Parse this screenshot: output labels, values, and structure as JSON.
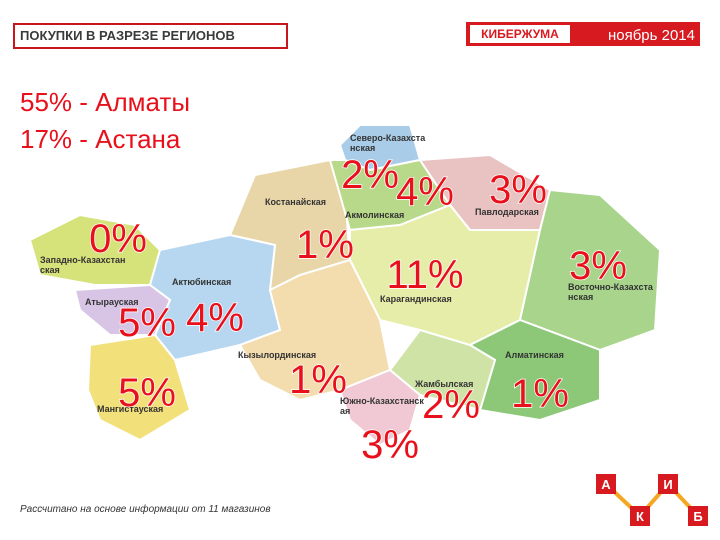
{
  "header": {
    "title": "ПОКУПКИ В РАЗРЕЗЕ РЕГИОНОВ",
    "brand": "КИБЕРЖУМА",
    "date": "ноябрь 2014"
  },
  "summary": [
    "55% - Алматы",
    "17% - Астана"
  ],
  "regions": [
    {
      "name": "Северо-Казахстанская"
    },
    {
      "name": "Костанайская"
    },
    {
      "name": "Акмолинская"
    },
    {
      "name": "Павлодарская"
    },
    {
      "name": "Западно-Казахстанская"
    },
    {
      "name": "Актюбинская"
    },
    {
      "name": "Карагандинская"
    },
    {
      "name": "Восточно-Казахстанская"
    },
    {
      "name": "Атырауская"
    },
    {
      "name": "Кызылординская"
    },
    {
      "name": "Мангистауская"
    },
    {
      "name": "Алматинская"
    },
    {
      "name": "Жамбылская"
    },
    {
      "name": "Южно-Казахстанская"
    }
  ],
  "percents": [
    "2%",
    "4%",
    "3%",
    "0%",
    "1%",
    "11%",
    "3%",
    "5%",
    "4%",
    "5%",
    "1%",
    "2%",
    "1%",
    "3%"
  ],
  "footnote": "Рассчитано на основе информации от 11 магазинов",
  "logo": [
    "А",
    "И",
    "К",
    "Б"
  ]
}
